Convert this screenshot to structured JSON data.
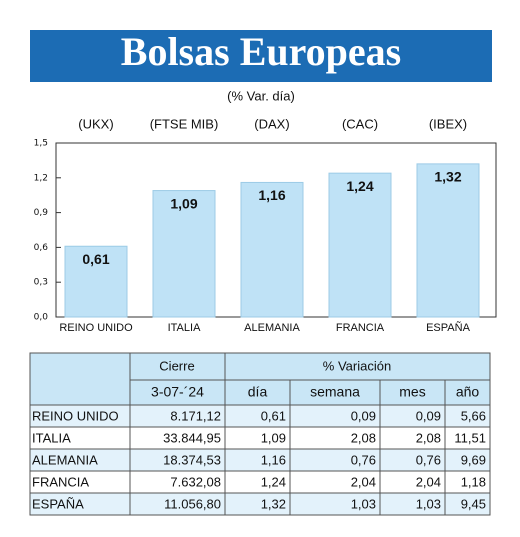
{
  "chart_data": {
    "type": "bar",
    "title": "Bolsas Europeas",
    "subtitle": "(% Var. día)",
    "categories": [
      "REINO UNIDO",
      "ITALIA",
      "ALEMANIA",
      "FRANCIA",
      "ESPAÑA"
    ],
    "codes": [
      "(UKX)",
      "(FTSE MIB)",
      "(DAX)",
      "(CAC)",
      "(IBEX)"
    ],
    "values": [
      0.61,
      1.09,
      1.16,
      1.24,
      1.32
    ],
    "value_labels": [
      "0,61",
      "1,09",
      "1,16",
      "1,24",
      "1,32"
    ],
    "color": "#bfe2f6",
    "ylim": [
      0,
      1.5
    ],
    "yticks": [
      {
        "value": 0,
        "label": "0,0"
      },
      {
        "value": 0.3,
        "label": "0,3"
      },
      {
        "value": 0.6,
        "label": "0,6"
      },
      {
        "value": 0.9,
        "label": "0,9"
      },
      {
        "value": 1.2,
        "label": "1,2"
      },
      {
        "value": 1.5,
        "label": "1,5"
      }
    ],
    "grid": false
  },
  "table": {
    "header": [
      "Cierre",
      "% Variación"
    ],
    "subheader": [
      "3-07-´24",
      "día",
      "semana",
      "mes",
      "año"
    ],
    "rows": [
      [
        "REINO UNIDO",
        "8.171,12",
        "0,61",
        "0,09",
        "0,09",
        "5,66"
      ],
      [
        "ITALIA",
        "33.844,95",
        "1,09",
        "2,08",
        "2,08",
        "11,51"
      ],
      [
        "ALEMANIA",
        "18.374,53",
        "1,16",
        "0,76",
        "0,76",
        "9,69"
      ],
      [
        "FRANCIA",
        "7.632,08",
        "1,24",
        "2,04",
        "2,04",
        "1,18"
      ],
      [
        "ESPAÑA",
        "11.056,80",
        "1,32",
        "1,03",
        "1,03",
        "9,45"
      ]
    ]
  }
}
